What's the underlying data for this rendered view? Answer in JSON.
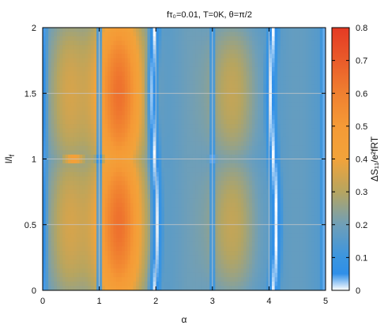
{
  "chart_data": {
    "type": "heatmap",
    "title": "fτ₀=0.01, T=0K, θ=π/2",
    "xlabel": "α",
    "ylabel": "l/l_f",
    "ylabel_main": "l/l",
    "ylabel_sub": "f",
    "colorbar_label": "ΔS₁₁/e²fRT",
    "xlim": [
      0,
      5
    ],
    "ylim": [
      0,
      2
    ],
    "zlim": [
      0,
      0.8
    ],
    "x_ticks": [
      "0",
      "1",
      "2",
      "3",
      "4",
      "5"
    ],
    "y_ticks": [
      "0",
      "0.5",
      "1",
      "1.5",
      "2"
    ],
    "colorbar_ticks": [
      "0",
      "0.1",
      "0.2",
      "0.3",
      "0.4",
      "0.5",
      "0.6",
      "0.7",
      "0.8"
    ],
    "grid": true,
    "colormap": [
      {
        "v": 0.0,
        "color": "#ffffff"
      },
      {
        "v": 0.05,
        "color": "#2f8fe8"
      },
      {
        "v": 0.1,
        "color": "#3a95e0"
      },
      {
        "v": 0.2,
        "color": "#6f9fb8"
      },
      {
        "v": 0.3,
        "color": "#b6a560"
      },
      {
        "v": 0.4,
        "color": "#f2a33a"
      },
      {
        "v": 0.5,
        "color": "#f59a36"
      },
      {
        "v": 0.6,
        "color": "#f08030"
      },
      {
        "v": 0.7,
        "color": "#ea5b2a"
      },
      {
        "v": 0.8,
        "color": "#e43a24"
      }
    ]
  }
}
